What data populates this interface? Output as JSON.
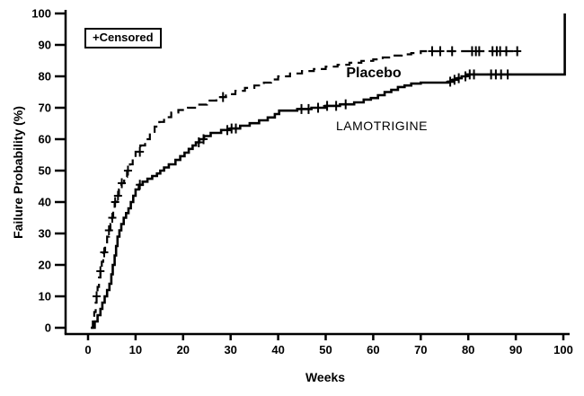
{
  "figure": {
    "background": "#ffffff",
    "ink": "#000000"
  },
  "chart_data": {
    "type": "line",
    "subtype": "kaplan-meier-step",
    "title": "",
    "xlabel": "Weeks",
    "ylabel": "Failure Probability (%)",
    "xlim": [
      0,
      100
    ],
    "ylim": [
      0,
      100
    ],
    "x_ticks": [
      0,
      10,
      20,
      30,
      40,
      50,
      60,
      70,
      80,
      90,
      100
    ],
    "y_ticks": [
      0,
      10,
      20,
      30,
      40,
      50,
      60,
      70,
      80,
      90,
      100
    ],
    "grid": false,
    "legend": {
      "text": "+Censored",
      "position": "top-left"
    },
    "series": [
      {
        "name": "Placebo",
        "style": "dashed",
        "steps": [
          [
            0.6,
            0
          ],
          [
            1,
            2
          ],
          [
            1.3,
            5
          ],
          [
            1.6,
            8
          ],
          [
            1.8,
            10
          ],
          [
            2,
            13
          ],
          [
            2.3,
            16
          ],
          [
            2.6,
            18
          ],
          [
            2.9,
            21
          ],
          [
            3.2,
            24
          ],
          [
            3.6,
            26
          ],
          [
            4,
            29
          ],
          [
            4.4,
            31
          ],
          [
            4.7,
            33
          ],
          [
            5,
            35
          ],
          [
            5.3,
            38
          ],
          [
            5.6,
            40
          ],
          [
            6,
            42
          ],
          [
            6.5,
            44
          ],
          [
            7,
            46
          ],
          [
            7.6,
            48
          ],
          [
            8.2,
            50
          ],
          [
            8.8,
            52
          ],
          [
            9.4,
            54
          ],
          [
            10,
            56
          ],
          [
            11,
            58
          ],
          [
            12,
            60
          ],
          [
            13,
            62
          ],
          [
            14,
            64
          ],
          [
            15,
            65.5
          ],
          [
            16,
            67
          ],
          [
            17.5,
            68.5
          ],
          [
            19,
            69.3
          ],
          [
            21,
            70
          ],
          [
            23,
            71
          ],
          [
            25,
            72.3
          ],
          [
            27,
            73.4
          ],
          [
            29,
            74.3
          ],
          [
            31,
            75.4
          ],
          [
            33,
            76.3
          ],
          [
            35,
            77.1
          ],
          [
            37,
            78
          ],
          [
            38.5,
            79
          ],
          [
            40,
            80
          ],
          [
            42.5,
            80.9
          ],
          [
            45,
            81.7
          ],
          [
            47.5,
            82.3
          ],
          [
            50,
            83.1
          ],
          [
            52.5,
            83.7
          ],
          [
            55,
            84.3
          ],
          [
            57.5,
            84.9
          ],
          [
            60,
            85.4
          ],
          [
            62,
            86
          ],
          [
            64,
            86.6
          ],
          [
            66,
            87
          ],
          [
            68,
            87.4
          ],
          [
            70,
            88
          ],
          [
            90.5,
            88
          ]
        ],
        "censor_marks_weeks": [
          1.8,
          2.6,
          3.4,
          4.4,
          5.1,
          5.7,
          6.3,
          7.1,
          8.4,
          10.9,
          28.4,
          72.4,
          74.1,
          76.6,
          80.8,
          81.6,
          82.3,
          85.1,
          86,
          86.7,
          88,
          90.3
        ]
      },
      {
        "name": "LAMOTRIGINE",
        "style": "solid",
        "steps": [
          [
            0.6,
            0
          ],
          [
            1.4,
            2
          ],
          [
            2,
            4
          ],
          [
            2.6,
            6
          ],
          [
            3,
            8
          ],
          [
            3.5,
            10
          ],
          [
            4,
            12
          ],
          [
            4.5,
            14
          ],
          [
            4.9,
            17
          ],
          [
            5.2,
            20
          ],
          [
            5.6,
            23
          ],
          [
            5.9,
            26
          ],
          [
            6.2,
            29
          ],
          [
            6.6,
            31
          ],
          [
            7,
            33
          ],
          [
            7.5,
            35
          ],
          [
            8,
            36.5
          ],
          [
            8.5,
            38
          ],
          [
            9,
            40
          ],
          [
            9.5,
            42
          ],
          [
            10,
            44
          ],
          [
            10.7,
            45.5
          ],
          [
            11.5,
            46.5
          ],
          [
            12.5,
            47.4
          ],
          [
            13.5,
            48.3
          ],
          [
            14.5,
            49.1
          ],
          [
            15.2,
            50
          ],
          [
            16,
            51
          ],
          [
            17,
            52
          ],
          [
            18.4,
            53.4
          ],
          [
            19.4,
            54.6
          ],
          [
            20.3,
            55.7
          ],
          [
            21.2,
            56.9
          ],
          [
            22,
            58
          ],
          [
            22.7,
            59
          ],
          [
            23.4,
            60
          ],
          [
            24.4,
            61
          ],
          [
            25.8,
            62
          ],
          [
            28,
            62.9
          ],
          [
            30,
            63.4
          ],
          [
            32,
            64.3
          ],
          [
            34,
            65.1
          ],
          [
            36,
            66
          ],
          [
            37.8,
            66.9
          ],
          [
            39.3,
            68
          ],
          [
            40.2,
            69.1
          ],
          [
            44,
            69.6
          ],
          [
            47,
            70
          ],
          [
            50,
            70.6
          ],
          [
            53,
            71.1
          ],
          [
            56,
            71.7
          ],
          [
            58,
            72.6
          ],
          [
            59.5,
            73.1
          ],
          [
            61,
            74
          ],
          [
            62.4,
            75
          ],
          [
            63.8,
            75.7
          ],
          [
            65.2,
            76.6
          ],
          [
            66.6,
            77.1
          ],
          [
            68,
            77.7
          ],
          [
            70,
            78
          ],
          [
            75.8,
            78.3
          ],
          [
            76.8,
            78.9
          ],
          [
            77.7,
            79.4
          ],
          [
            78.6,
            80
          ],
          [
            79.6,
            80.6
          ],
          [
            100.3,
            80.6
          ],
          [
            100.3,
            100
          ]
        ],
        "censor_marks_weeks": [
          10.9,
          23.3,
          24.3,
          29.3,
          30.2,
          31.1,
          44.9,
          46.4,
          48.4,
          50.3,
          52.2,
          54.2,
          76.2,
          77.1,
          78,
          79.4,
          80.3,
          81.2,
          84.8,
          85.8,
          86.9,
          88.3
        ]
      }
    ]
  }
}
